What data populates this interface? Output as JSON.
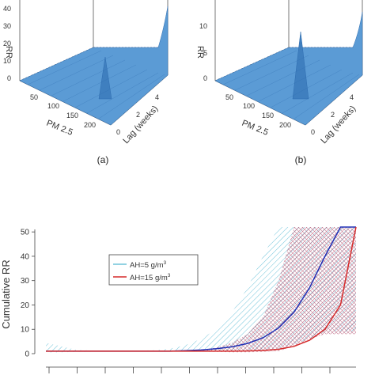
{
  "panels": [
    {
      "id": "a",
      "caption": "(a)",
      "zlabel": "RR",
      "xlabel": "PM 2.5",
      "ylabel": "Lag (weeks)",
      "z_ticks": [
        "40",
        "30",
        "20",
        "10",
        "0"
      ],
      "pm_ticks": [
        "50",
        "100",
        "150",
        "200"
      ],
      "lag_ticks": [
        "0",
        "2",
        "4"
      ]
    },
    {
      "id": "b",
      "caption": "(b)",
      "zlabel": "RR",
      "xlabel": "PM 2.5",
      "ylabel": "Lag (weeks)",
      "z_ticks": [
        "10",
        "5",
        "0"
      ],
      "pm_ticks": [
        "50",
        "100",
        "150",
        "200"
      ],
      "lag_ticks": [
        "0",
        "2",
        "4"
      ]
    }
  ],
  "colors": {
    "surface": "#5b9bd5",
    "surface_line": "#2f6db0",
    "ah5": "#1f2fb5",
    "ah5_band": "#6fc3d9",
    "ah15": "#d62a2a",
    "ah15_band": "#b04a6a"
  },
  "chart_data": {
    "type": "line",
    "ylabel": "Cumulative RR",
    "ylim": [
      0,
      52
    ],
    "y_ticks": [
      0,
      10,
      20,
      30,
      40,
      50
    ],
    "legend_position": "top-left",
    "x": [
      0,
      5,
      10,
      15,
      20,
      25,
      30,
      35,
      40,
      45,
      50,
      55,
      60,
      65,
      70,
      75,
      80,
      85,
      90,
      95,
      100
    ],
    "series": [
      {
        "name": "AH=5 g/m",
        "name_sup": "3",
        "values": [
          1.0,
          1.0,
          1.0,
          1.0,
          1.0,
          1.0,
          1.0,
          1.0,
          1.0,
          1.2,
          1.5,
          2.0,
          2.8,
          4.2,
          6.5,
          10.5,
          17,
          27,
          40,
          52,
          52
        ],
        "lower": [
          0.5,
          0.6,
          0.7,
          0.8,
          0.9,
          0.9,
          0.9,
          0.9,
          0.8,
          0.8,
          0.8,
          0.8,
          0.8,
          0.9,
          1.0,
          2.0,
          4.0,
          6.0,
          9.0,
          9.0,
          9.0
        ],
        "upper": [
          4.5,
          3.0,
          1.5,
          1.2,
          1.1,
          1.1,
          1.2,
          1.4,
          2.0,
          3.5,
          6.0,
          10,
          17,
          27,
          40,
          52,
          52,
          52,
          52,
          52,
          52
        ]
      },
      {
        "name": "AH=15 g/m",
        "name_sup": "3",
        "values": [
          1.0,
          1.0,
          1.0,
          1.0,
          1.0,
          1.0,
          1.0,
          1.0,
          1.0,
          1.0,
          1.0,
          1.0,
          1.0,
          1.1,
          1.3,
          1.8,
          3.0,
          5.5,
          10,
          20,
          52
        ],
        "lower": [
          0.8,
          0.9,
          0.9,
          0.9,
          0.9,
          0.9,
          0.9,
          0.9,
          0.9,
          0.9,
          0.8,
          0.7,
          0.6,
          0.6,
          0.7,
          1.0,
          3.0,
          6.0,
          8.0,
          8.0,
          8.0
        ],
        "upper": [
          1.2,
          1.1,
          1.1,
          1.1,
          1.1,
          1.1,
          1.1,
          1.1,
          1.1,
          1.2,
          1.5,
          2.5,
          4.5,
          8.0,
          15,
          30,
          52,
          52,
          52,
          52,
          52
        ]
      }
    ]
  }
}
